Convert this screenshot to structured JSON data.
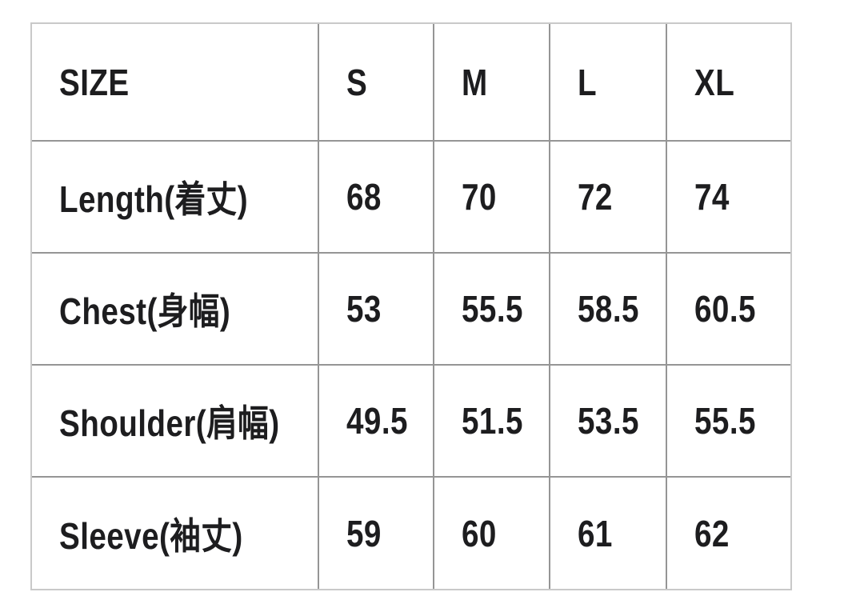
{
  "colors": {
    "background": "#ffffff",
    "text": "#1d1d1f",
    "grid_line": "#959595",
    "outer_border": "#c9c9c9"
  },
  "chart_data": {
    "type": "table",
    "columns": [
      "SIZE",
      "S",
      "M",
      "L",
      "XL"
    ],
    "rows": [
      {
        "label": "Length(着丈)",
        "values": [
          68,
          70,
          72,
          74
        ]
      },
      {
        "label": "Chest(身幅)",
        "values": [
          53,
          55.5,
          58.5,
          60.5
        ]
      },
      {
        "label": "Shoulder(肩幅)",
        "values": [
          49.5,
          51.5,
          53.5,
          55.5
        ]
      },
      {
        "label": "Sleeve(袖丈)",
        "values": [
          59,
          60,
          61,
          62
        ]
      }
    ],
    "layout": {
      "grid": true,
      "header_row": true,
      "units": "cm (implied, not shown)"
    }
  }
}
